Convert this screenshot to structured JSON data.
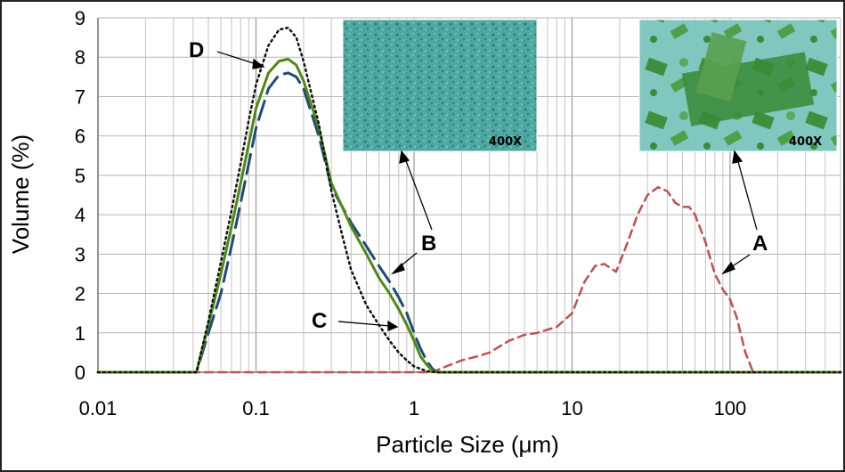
{
  "chart_data": {
    "type": "line",
    "title": "",
    "xlabel": "Particle Size (μm)",
    "ylabel": "Volume (%)",
    "xscale": "log",
    "xlim": [
      0.01,
      500
    ],
    "ylim": [
      0,
      9
    ],
    "xticks": [
      "0.01",
      "0.1",
      "1",
      "10",
      "100"
    ],
    "yticks": [
      "0",
      "1",
      "2",
      "3",
      "4",
      "5",
      "6",
      "7",
      "8",
      "9"
    ],
    "grid": true,
    "series": [
      {
        "name": "A",
        "color": "#c0504d",
        "style": "dashed",
        "x": [
          0.01,
          1.3,
          1.6,
          2,
          2.5,
          3,
          4,
          5,
          6,
          8,
          10,
          12,
          14,
          16,
          19,
          22,
          26,
          30,
          35,
          40,
          45,
          50,
          55,
          60,
          70,
          80,
          90,
          100,
          110,
          125,
          140,
          500
        ],
        "y": [
          0,
          0,
          0.15,
          0.3,
          0.4,
          0.5,
          0.8,
          0.95,
          1.0,
          1.15,
          1.5,
          2.3,
          2.7,
          2.75,
          2.55,
          3.2,
          4.0,
          4.5,
          4.7,
          4.6,
          4.3,
          4.2,
          4.2,
          4.0,
          3.3,
          2.5,
          2.1,
          1.85,
          1.4,
          0.5,
          0,
          0
        ]
      },
      {
        "name": "B",
        "color": "#1f497d",
        "style": "long-dash",
        "x": [
          0.01,
          0.042,
          0.05,
          0.06,
          0.07,
          0.08,
          0.09,
          0.1,
          0.12,
          0.14,
          0.16,
          0.18,
          0.2,
          0.25,
          0.3,
          0.4,
          0.5,
          0.6,
          0.7,
          0.8,
          0.9,
          1.0,
          1.1,
          1.2,
          1.3,
          1.4,
          500
        ],
        "y": [
          0,
          0,
          1.0,
          2.0,
          3.2,
          4.3,
          5.3,
          6.2,
          7.2,
          7.55,
          7.6,
          7.5,
          7.2,
          6.0,
          4.7,
          3.8,
          3.2,
          2.7,
          2.3,
          1.9,
          1.5,
          1.0,
          0.6,
          0.3,
          0.1,
          0,
          0
        ]
      },
      {
        "name": "C",
        "color": "#4f8a10",
        "style": "solid",
        "x": [
          0.01,
          0.042,
          0.05,
          0.06,
          0.07,
          0.08,
          0.09,
          0.1,
          0.12,
          0.14,
          0.16,
          0.18,
          0.2,
          0.25,
          0.3,
          0.4,
          0.5,
          0.6,
          0.7,
          0.8,
          0.9,
          1.0,
          1.1,
          1.2,
          1.3,
          1.4,
          500
        ],
        "y": [
          0,
          0,
          1.2,
          2.5,
          3.7,
          4.8,
          5.8,
          6.7,
          7.6,
          7.9,
          7.95,
          7.8,
          7.4,
          6.2,
          4.8,
          3.7,
          3.0,
          2.4,
          2.0,
          1.6,
          1.2,
          0.8,
          0.4,
          0.2,
          0.05,
          0,
          0
        ]
      },
      {
        "name": "D",
        "color": "#111111",
        "style": "dotted",
        "x": [
          0.01,
          0.042,
          0.05,
          0.06,
          0.07,
          0.08,
          0.09,
          0.1,
          0.12,
          0.14,
          0.16,
          0.18,
          0.2,
          0.25,
          0.3,
          0.35,
          0.4,
          0.5,
          0.6,
          0.7,
          0.8,
          0.9,
          1.0,
          1.2,
          1.4,
          500
        ],
        "y": [
          0,
          0,
          1.3,
          2.8,
          4.1,
          5.3,
          6.4,
          7.3,
          8.3,
          8.7,
          8.75,
          8.5,
          7.9,
          6.3,
          4.6,
          3.5,
          2.6,
          1.7,
          1.2,
          0.8,
          0.5,
          0.3,
          0.15,
          0.03,
          0,
          0
        ]
      }
    ],
    "annotations": [
      {
        "label": "A",
        "x": 100,
        "y": 2.5
      },
      {
        "label": "B",
        "x": 0.8,
        "y": 2.6
      },
      {
        "label": "C",
        "x": 0.5,
        "y": 1.2
      },
      {
        "label": "D",
        "x": 0.11,
        "y": 7.9
      }
    ],
    "insets": [
      {
        "name": "inset-fine",
        "magnification": "400X",
        "color": "#3f9a95"
      },
      {
        "name": "inset-coarse",
        "magnification": "400X",
        "color": "#2f8a45"
      }
    ]
  }
}
